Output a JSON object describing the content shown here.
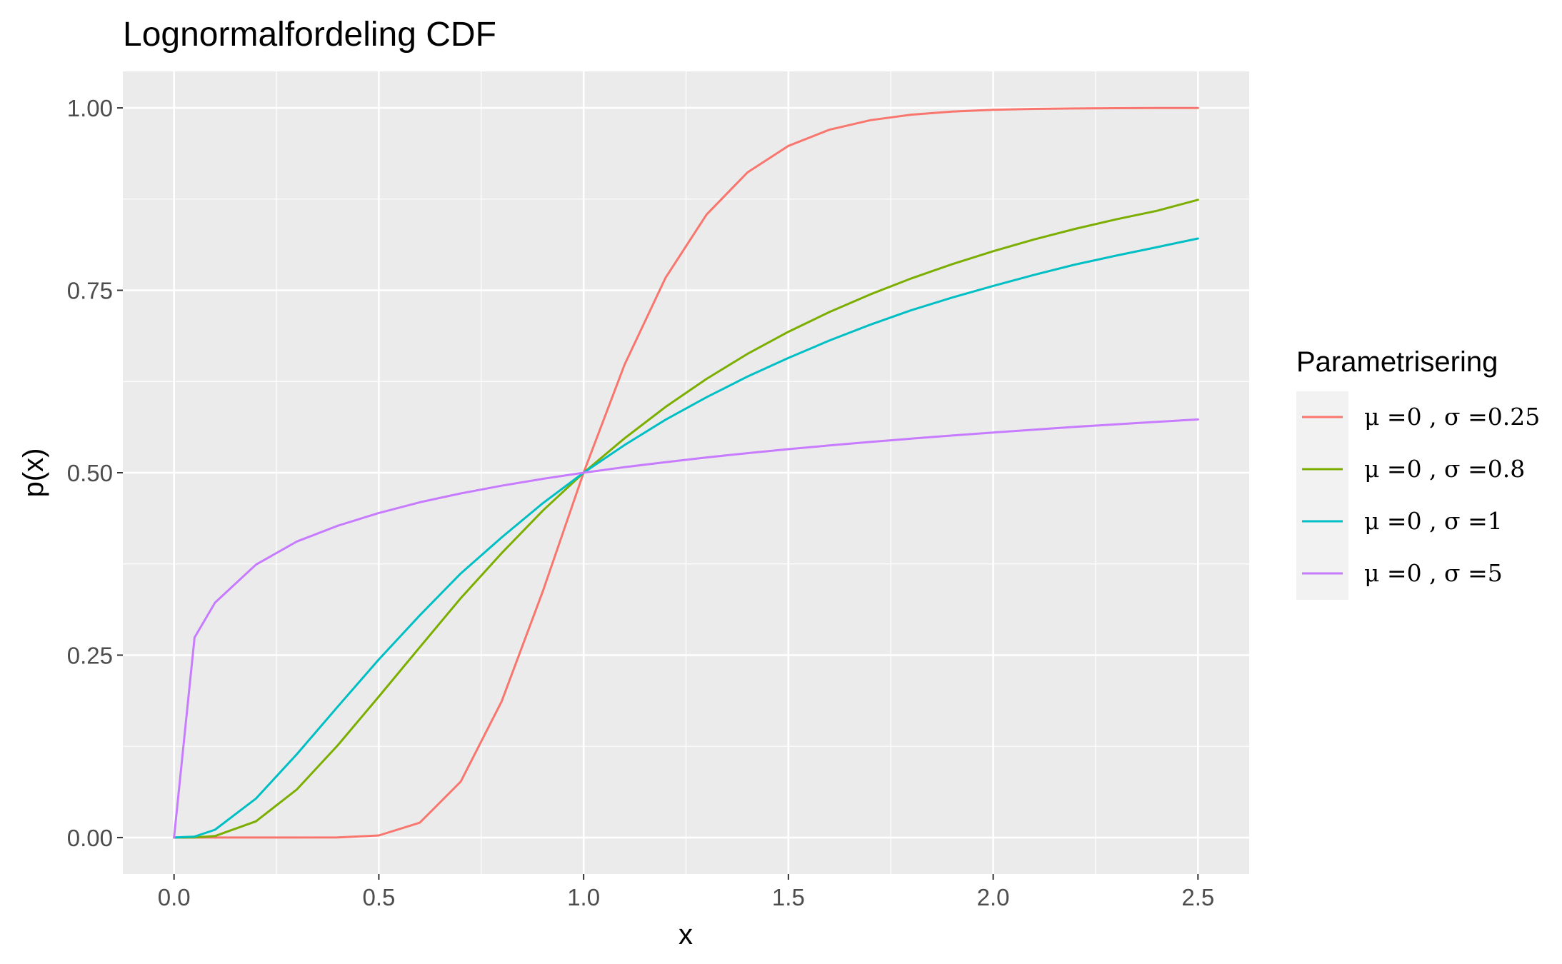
{
  "chart_data": {
    "type": "line",
    "title": "Lognormalfordeling CDF",
    "xlabel": "x",
    "ylabel": "p(x)",
    "xlim": [
      -0.125,
      2.625
    ],
    "ylim": [
      -0.05,
      1.05
    ],
    "x_ticks": [
      0.0,
      0.5,
      1.0,
      1.5,
      2.0,
      2.5
    ],
    "x_tick_labels": [
      "0.0",
      "0.5",
      "1.0",
      "1.5",
      "2.0",
      "2.5"
    ],
    "y_ticks": [
      0.0,
      0.25,
      0.5,
      0.75,
      1.0
    ],
    "y_tick_labels": [
      "0.00",
      "0.25",
      "0.50",
      "0.75",
      "1.00"
    ],
    "grid": true,
    "legend": {
      "title": "Parametrisering",
      "position": "right"
    },
    "x": [
      0.0,
      0.05,
      0.1,
      0.2,
      0.3,
      0.4,
      0.5,
      0.6,
      0.7,
      0.8,
      0.9,
      1.0,
      1.1,
      1.2,
      1.3,
      1.4,
      1.5,
      1.6,
      1.7,
      1.8,
      1.9,
      2.0,
      2.1,
      2.2,
      2.3,
      2.4,
      2.5
    ],
    "series": [
      {
        "name": "μ =0 ,  σ =0.25",
        "color": "#F8766D",
        "values": [
          0.0,
          0.0,
          0.0,
          0.0,
          0.0,
          0.0001,
          0.0028,
          0.0204,
          0.0766,
          0.1866,
          0.3369,
          0.5,
          0.6482,
          0.7671,
          0.8537,
          0.9115,
          0.9479,
          0.97,
          0.9832,
          0.9907,
          0.995,
          0.9973,
          0.9986,
          0.9992,
          0.9996,
          0.9998,
          0.9999
        ]
      },
      {
        "name": "μ =0 ,  σ =0.8",
        "color": "#7CAE00",
        "values": [
          0.0,
          0.0001,
          0.0021,
          0.0222,
          0.066,
          0.1266,
          0.1932,
          0.2609,
          0.3281,
          0.3898,
          0.4478,
          0.5,
          0.5472,
          0.5901,
          0.6286,
          0.6628,
          0.6932,
          0.7202,
          0.7445,
          0.7663,
          0.7859,
          0.8036,
          0.8197,
          0.8342,
          0.8472,
          0.859,
          0.874
        ]
      },
      {
        "name": "μ =0 ,  σ =1",
        "color": "#00BFC4",
        "values": [
          0.0,
          0.0013,
          0.0107,
          0.0534,
          0.1143,
          0.1797,
          0.2441,
          0.3046,
          0.3619,
          0.4113,
          0.458,
          0.5,
          0.538,
          0.5726,
          0.6034,
          0.6317,
          0.6574,
          0.6811,
          0.7029,
          0.7227,
          0.7401,
          0.756,
          0.7712,
          0.7853,
          0.7975,
          0.8092,
          0.821
        ]
      },
      {
        "name": "μ =0 ,  σ =5",
        "color": "#C77CFF",
        "values": [
          0.0,
          0.2741,
          0.3219,
          0.374,
          0.4058,
          0.4274,
          0.4448,
          0.4595,
          0.4716,
          0.4822,
          0.4916,
          0.5,
          0.5076,
          0.5145,
          0.5209,
          0.5268,
          0.5323,
          0.5374,
          0.5422,
          0.5467,
          0.551,
          0.5551,
          0.559,
          0.5628,
          0.5664,
          0.5698,
          0.573
        ]
      }
    ]
  }
}
